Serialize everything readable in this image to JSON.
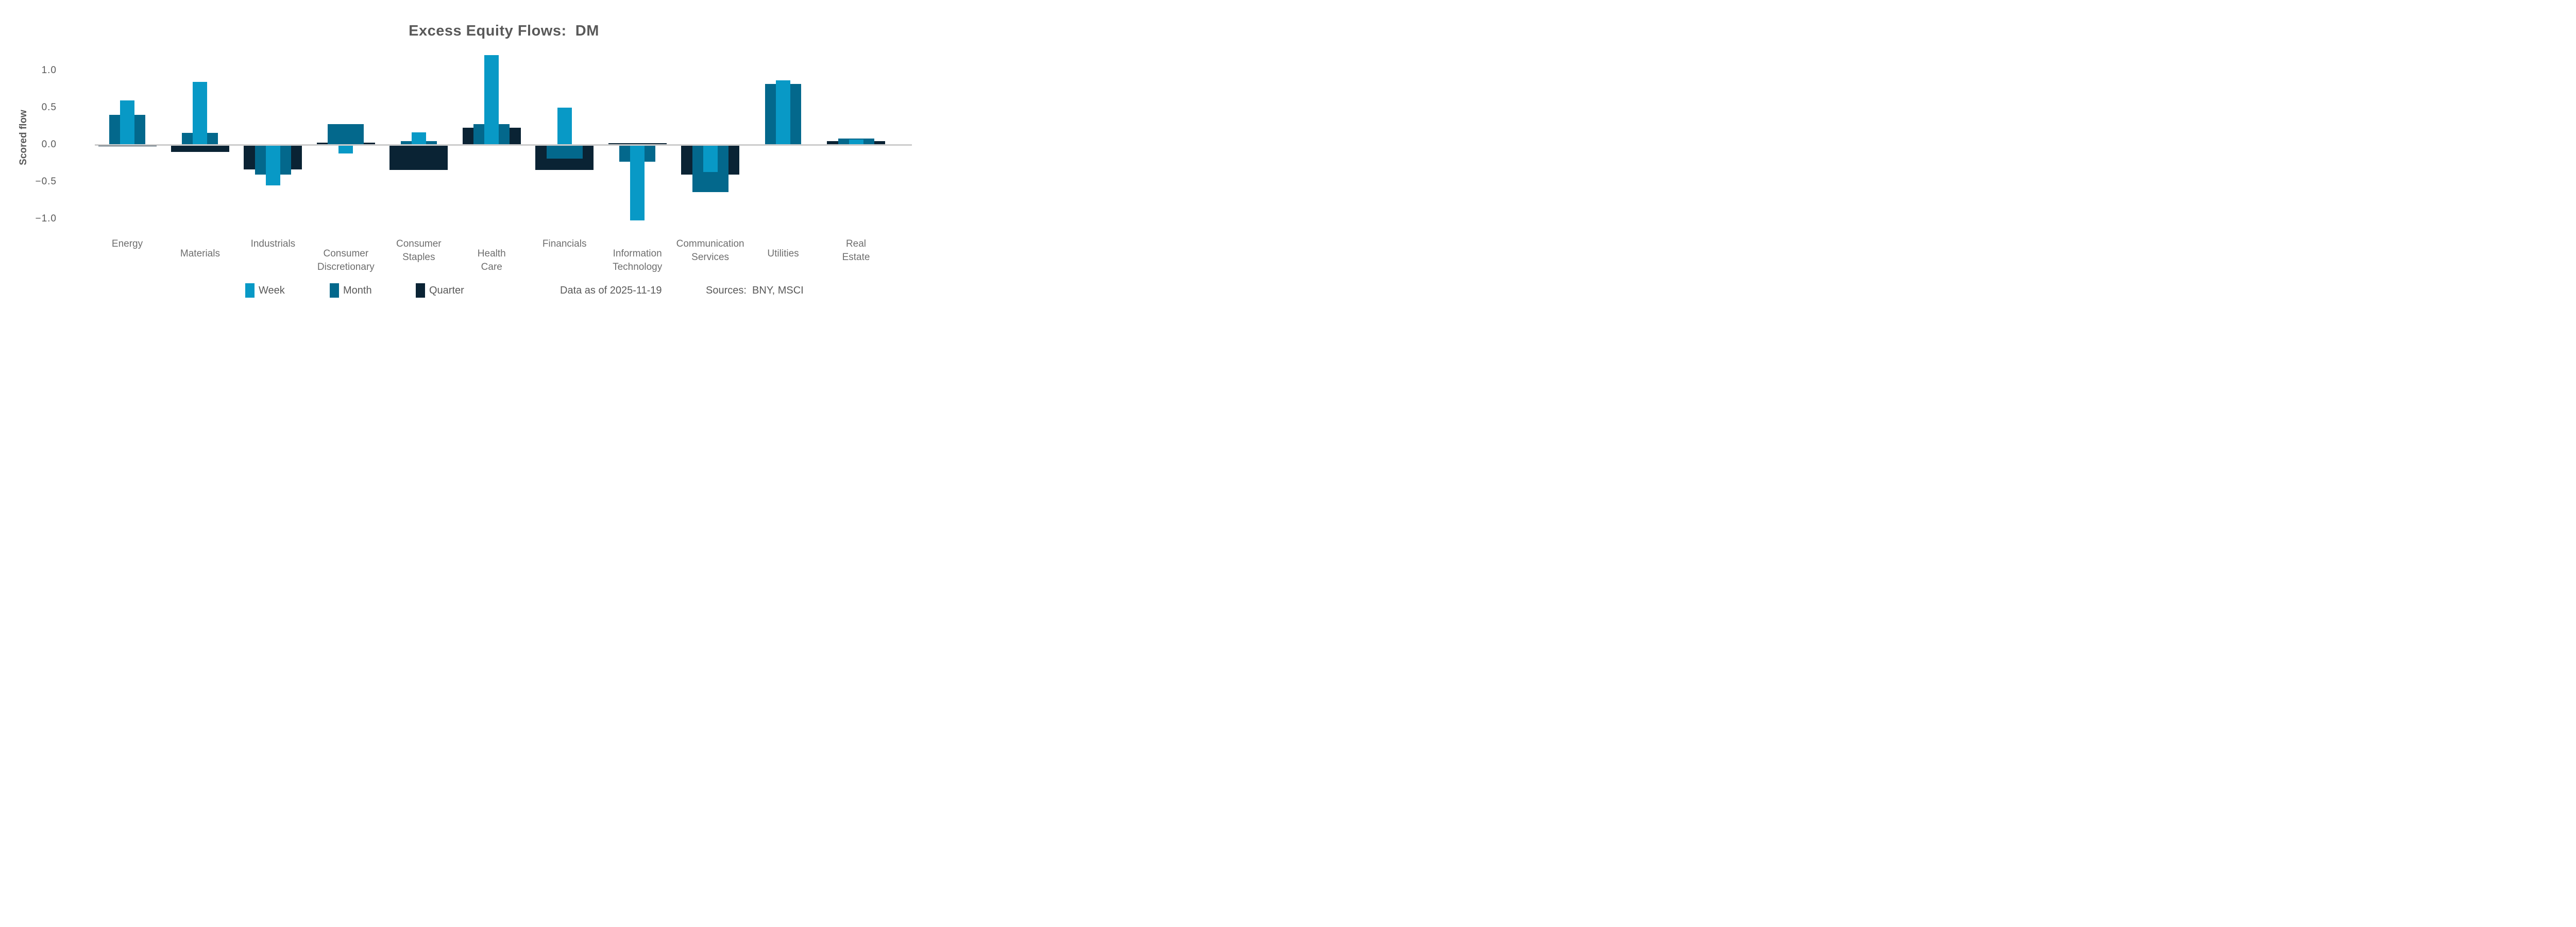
{
  "title": "Excess Equity Flows:  DM",
  "footer": {
    "data_as_of": "Data as of 2025-11-19",
    "sources": "Sources:  BNY, MSCI"
  },
  "colors": {
    "week": "#0899C6",
    "month": "#03688C",
    "quarter": "#0A2334",
    "axis_line": "#CCCCCC",
    "title_text": "#595959",
    "xlabel_text": "#6E6E6E"
  },
  "chart_data": {
    "type": "bar",
    "title": "Excess Equity Flows:  DM",
    "xlabel": "",
    "ylabel": "Scored flow",
    "categories": [
      "Energy",
      "Materials",
      "Industrials",
      "Consumer Discretionary",
      "Consumer Staples",
      "Health Care",
      "Financials",
      "Information Technology",
      "Communication Services",
      "Utilities",
      "Real Estate"
    ],
    "x_tick_labels": [
      {
        "text": "Energy",
        "row": "top"
      },
      {
        "text": "Materials",
        "row": "bottom"
      },
      {
        "text": "Industrials",
        "row": "top"
      },
      {
        "text": "Consumer\nDiscretionary",
        "row": "bottom"
      },
      {
        "text": "Consumer\nStaples",
        "row": "top"
      },
      {
        "text": "Health\nCare",
        "row": "bottom"
      },
      {
        "text": "Financials",
        "row": "top"
      },
      {
        "text": "Information\nTechnology",
        "row": "bottom"
      },
      {
        "text": "Communication\nServices",
        "row": "top"
      },
      {
        "text": "Utilities",
        "row": "bottom"
      },
      {
        "text": "Real\nEstate",
        "row": "top"
      }
    ],
    "series": [
      {
        "name": "Week",
        "color": "#0899C6",
        "values": [
          0.6,
          0.85,
          -0.55,
          -0.12,
          0.17,
          1.21,
          0.5,
          -1.02,
          -0.37,
          0.87,
          0.07
        ]
      },
      {
        "name": "Month",
        "color": "#03688C",
        "values": [
          0.4,
          0.16,
          -0.4,
          0.28,
          0.05,
          0.28,
          -0.19,
          -0.23,
          -0.64,
          0.82,
          0.08
        ]
      },
      {
        "name": "Quarter",
        "color": "#0A2334",
        "values": [
          -0.02,
          -0.1,
          -0.33,
          0.03,
          -0.34,
          0.23,
          -0.34,
          0.02,
          -0.4,
          0.01,
          0.05
        ]
      }
    ],
    "yticks": [
      1.0,
      0.5,
      0.0,
      -0.5,
      -1.0
    ],
    "ytick_labels": [
      "1.0",
      "0.5",
      "0.0",
      "−0.5",
      "−1.0"
    ],
    "ylim": [
      -1.15,
      1.3
    ],
    "grid": false,
    "legend_position": "bottom-left",
    "bar_layout": "overlapped-centered",
    "bar_width_fraction": {
      "Week": 0.2,
      "Month": 0.5,
      "Quarter": 0.8
    }
  }
}
